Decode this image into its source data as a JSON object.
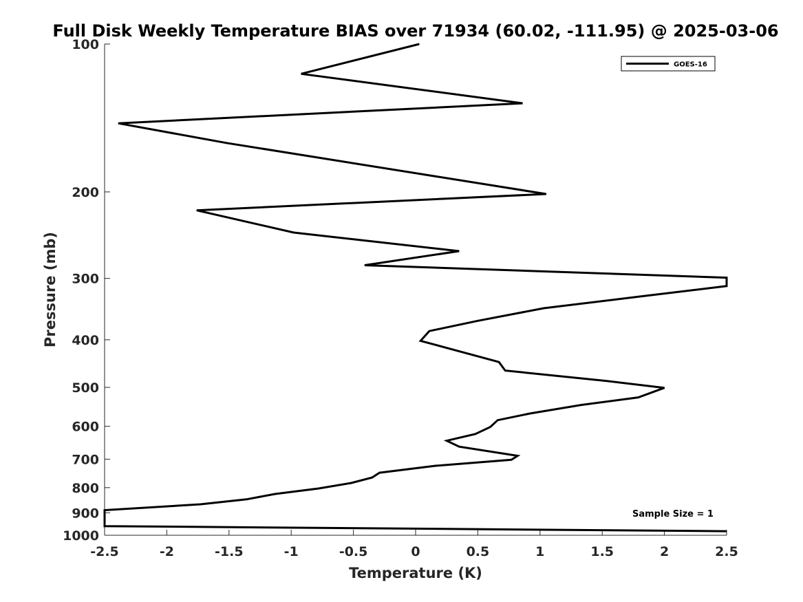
{
  "chart_data": {
    "type": "line",
    "title": "Full Disk Weekly Temperature BIAS over 71934 (60.02, -111.95) @ 2025-03-06",
    "xlabel": "Temperature (K)",
    "ylabel": "Pressure (mb)",
    "xlim": [
      -2.5,
      2.5
    ],
    "ylim": [
      1000,
      100
    ],
    "y_scale": "log",
    "x_ticks": [
      "-2.5",
      "-2",
      "-1.5",
      "-1",
      "-0.5",
      "0",
      "0.5",
      "1",
      "1.5",
      "2",
      "2.5"
    ],
    "y_ticks": [
      "100",
      "200",
      "300",
      "400",
      "500",
      "600",
      "700",
      "800",
      "900",
      "1000"
    ],
    "grid": false,
    "legend_position": "top-right",
    "annotations": [
      "Sample Size = 1"
    ],
    "series": [
      {
        "name": "GOES-16",
        "color": "#000000",
        "points": [
          [
            0.03,
            100
          ],
          [
            -0.92,
            115
          ],
          [
            0.86,
            132
          ],
          [
            -2.39,
            145
          ],
          [
            -1.52,
            159
          ],
          [
            1.05,
            202
          ],
          [
            -1.76,
            218
          ],
          [
            -0.98,
            242
          ],
          [
            0.35,
            264
          ],
          [
            -0.41,
            282
          ],
          [
            2.5,
            299
          ],
          [
            2.5,
            311
          ],
          [
            1.83,
            326
          ],
          [
            1.03,
            345
          ],
          [
            0.5,
            366
          ],
          [
            0.11,
            384
          ],
          [
            0.04,
            402
          ],
          [
            0.67,
            444
          ],
          [
            0.72,
            462
          ],
          [
            1.53,
            485
          ],
          [
            2.0,
            501
          ],
          [
            1.79,
            524
          ],
          [
            1.33,
            543
          ],
          [
            0.92,
            565
          ],
          [
            0.66,
            583
          ],
          [
            0.6,
            602
          ],
          [
            0.48,
            622
          ],
          [
            0.25,
            642
          ],
          [
            0.35,
            660
          ],
          [
            0.82,
            689
          ],
          [
            0.77,
            702
          ],
          [
            0.16,
            722
          ],
          [
            -0.29,
            746
          ],
          [
            -0.35,
            763
          ],
          [
            -0.52,
            783
          ],
          [
            -0.78,
            803
          ],
          [
            -1.13,
            824
          ],
          [
            -1.36,
            845
          ],
          [
            -1.73,
            865
          ],
          [
            -2.5,
            889
          ],
          [
            -2.5,
            958
          ],
          [
            2.5,
            981
          ]
        ]
      }
    ]
  }
}
